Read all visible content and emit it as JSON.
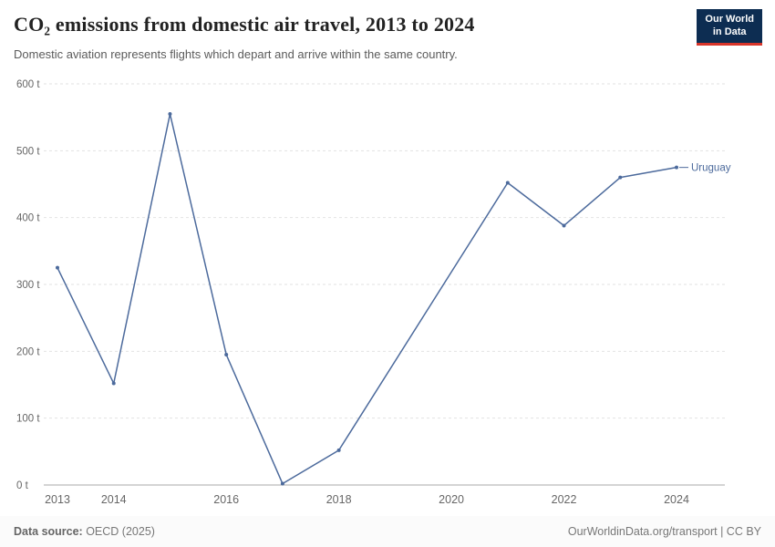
{
  "header": {
    "title": "CO₂ emissions from domestic air travel, 2013 to 2024",
    "subtitle": "Domestic aviation represents flights which depart and arrive within the same country.",
    "logo": {
      "line1": "Our World",
      "line2": "in Data"
    }
  },
  "footer": {
    "source_label": "Data source:",
    "source_value": " OECD (2025)",
    "link": "OurWorldinData.org/transport | CC BY"
  },
  "chart_data": {
    "type": "line",
    "title": "CO₂ emissions from domestic air travel, 2013 to 2024",
    "subtitle": "Domestic aviation represents flights which depart and arrive within the same country.",
    "x": [
      2013,
      2014,
      2015,
      2016,
      2017,
      2018,
      2021,
      2022,
      2023,
      2024
    ],
    "series": [
      {
        "name": "Uruguay",
        "color": "#4C6A9C",
        "values": [
          325,
          152,
          555,
          195,
          2,
          52,
          452,
          388,
          460,
          475
        ]
      }
    ],
    "xlabel": "",
    "ylabel": "",
    "xlim": [
      2013,
      2024
    ],
    "ylim": [
      0,
      600
    ],
    "yticks": [
      0,
      100,
      200,
      300,
      400,
      500,
      600
    ],
    "ytick_suffix": " t",
    "xticks": [
      2013,
      2014,
      2016,
      2018,
      2020,
      2022,
      2024
    ],
    "grid": "dashed-horizontal",
    "legend": "end-of-line-label"
  },
  "colors": {
    "accent": "#4C6A9C",
    "grid": "#e2e2e2",
    "axis": "#a8a8a8",
    "tick_text": "#666666"
  }
}
